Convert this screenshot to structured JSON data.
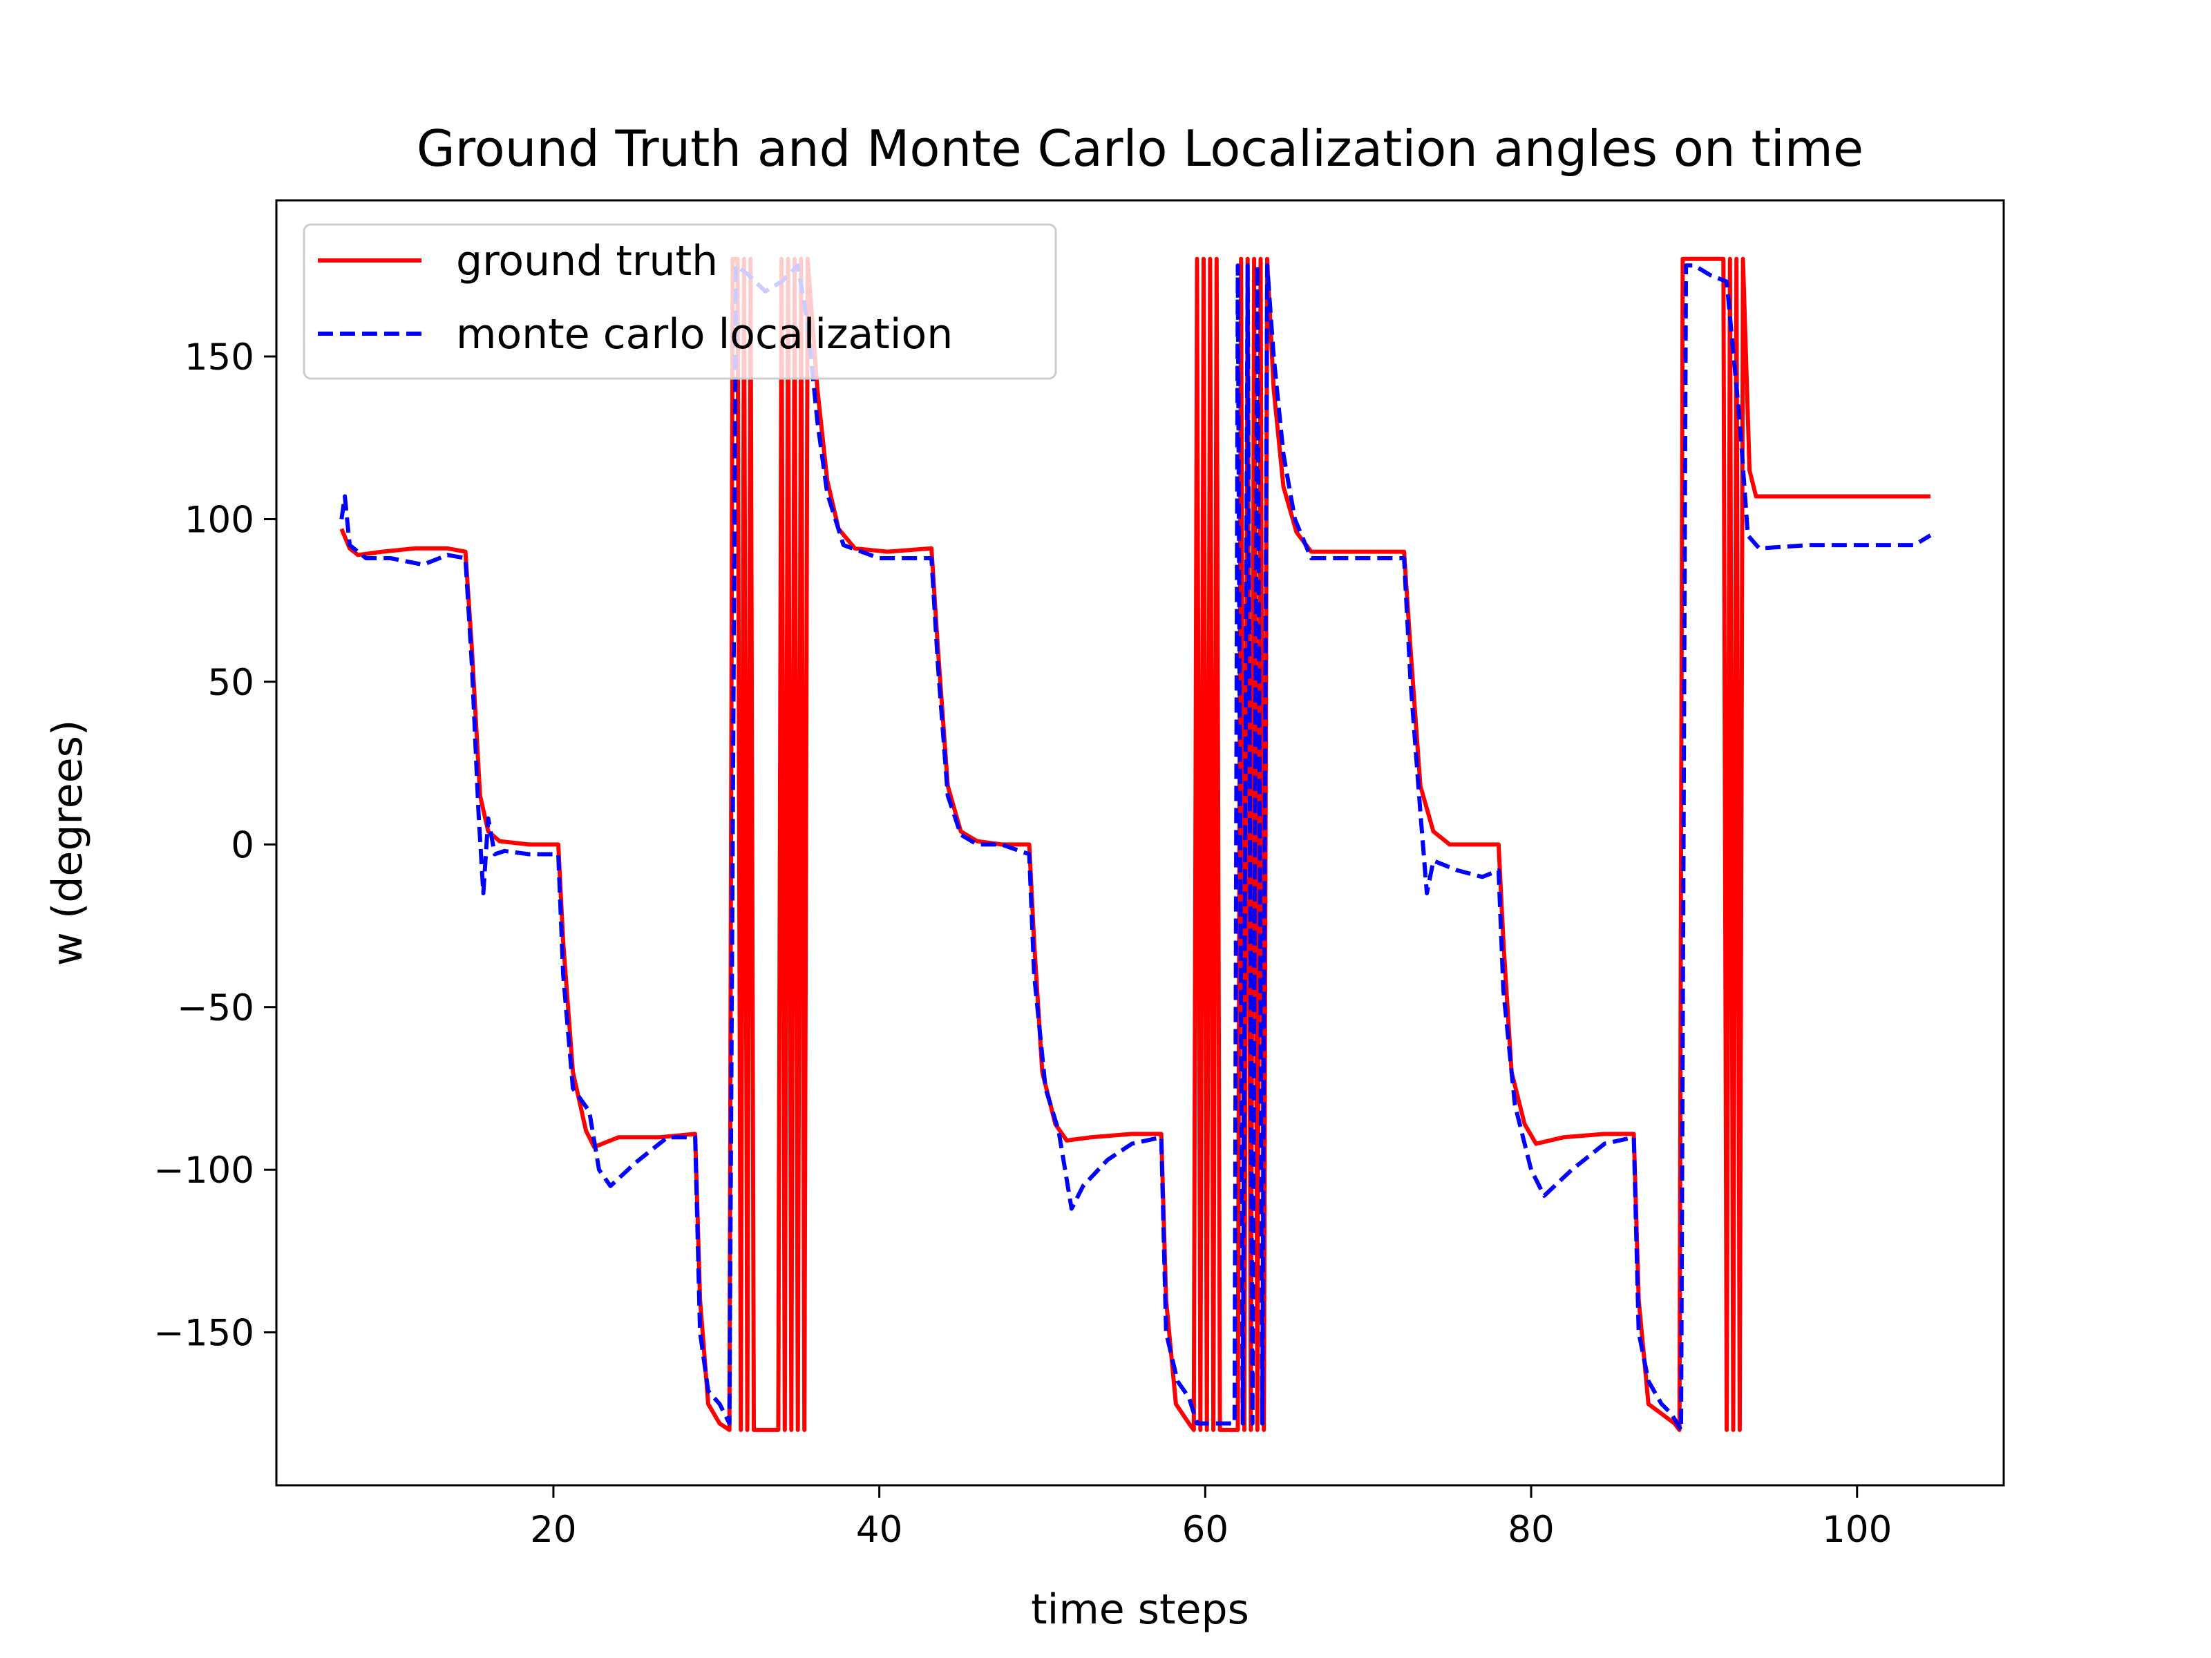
{
  "chart_data": {
    "type": "line",
    "title": "Ground Truth and Monte Carlo Localization angles on time",
    "xlabel": "time steps",
    "ylabel": "w (degrees)",
    "xlim": [
      3,
      109
    ],
    "ylim": [
      -197,
      198
    ],
    "xticks": [
      20,
      40,
      60,
      80,
      100
    ],
    "yticks": [
      -150,
      -100,
      -50,
      0,
      50,
      100,
      150
    ],
    "xtick_labels": [
      "20",
      "40",
      "60",
      "80",
      "100"
    ],
    "ytick_labels": [
      "−150",
      "−100",
      "−50",
      "0",
      "50",
      "100",
      "150"
    ],
    "grid": false,
    "legend_position": "upper-left",
    "series": [
      {
        "name": "ground truth",
        "color": "#ff0000",
        "style": "solid",
        "points": [
          [
            7.0,
            97
          ],
          [
            7.5,
            91
          ],
          [
            8.0,
            89
          ],
          [
            9.5,
            90
          ],
          [
            11.5,
            91
          ],
          [
            13.5,
            91
          ],
          [
            14.6,
            90
          ],
          [
            15.0,
            60
          ],
          [
            15.5,
            15
          ],
          [
            16.0,
            4
          ],
          [
            16.7,
            1
          ],
          [
            18.5,
            0
          ],
          [
            20.3,
            0
          ],
          [
            20.6,
            -30
          ],
          [
            21.2,
            -70
          ],
          [
            22.0,
            -88
          ],
          [
            22.5,
            -93
          ],
          [
            24.0,
            -90
          ],
          [
            26.5,
            -90
          ],
          [
            28.7,
            -89
          ],
          [
            29.0,
            -140
          ],
          [
            29.5,
            -172
          ],
          [
            30.2,
            -178
          ],
          [
            30.8,
            -180
          ],
          [
            31.0,
            180
          ],
          [
            31.3,
            180
          ],
          [
            31.5,
            -180
          ],
          [
            31.7,
            180
          ],
          [
            31.9,
            -180
          ],
          [
            32.1,
            180
          ],
          [
            32.3,
            -180
          ],
          [
            33.8,
            -180
          ],
          [
            34.0,
            180
          ],
          [
            34.2,
            -180
          ],
          [
            34.4,
            180
          ],
          [
            34.6,
            -180
          ],
          [
            34.8,
            180
          ],
          [
            35.0,
            -180
          ],
          [
            35.2,
            180
          ],
          [
            35.4,
            -180
          ],
          [
            35.6,
            180
          ],
          [
            36.2,
            140
          ],
          [
            36.8,
            112
          ],
          [
            37.5,
            97
          ],
          [
            38.5,
            91
          ],
          [
            40.5,
            90
          ],
          [
            43.2,
            91
          ],
          [
            43.6,
            60
          ],
          [
            44.2,
            18
          ],
          [
            45.0,
            4
          ],
          [
            46.0,
            1
          ],
          [
            47.5,
            0
          ],
          [
            49.2,
            0
          ],
          [
            49.5,
            -30
          ],
          [
            50.0,
            -70
          ],
          [
            50.8,
            -86
          ],
          [
            51.5,
            -91
          ],
          [
            53.0,
            -90
          ],
          [
            55.5,
            -89
          ],
          [
            57.3,
            -89
          ],
          [
            57.6,
            -140
          ],
          [
            58.2,
            -172
          ],
          [
            59.0,
            -178
          ],
          [
            59.3,
            -180
          ],
          [
            59.5,
            180
          ],
          [
            59.7,
            -180
          ],
          [
            59.9,
            180
          ],
          [
            60.1,
            -180
          ],
          [
            60.3,
            180
          ],
          [
            60.5,
            -180
          ],
          [
            60.7,
            180
          ],
          [
            60.9,
            -180
          ],
          [
            62.0,
            -180
          ],
          [
            62.2,
            180
          ],
          [
            62.4,
            -180
          ],
          [
            62.6,
            180
          ],
          [
            62.8,
            -180
          ],
          [
            63.0,
            180
          ],
          [
            63.2,
            -180
          ],
          [
            63.4,
            180
          ],
          [
            63.6,
            -180
          ],
          [
            63.8,
            180
          ],
          [
            64.2,
            140
          ],
          [
            64.8,
            110
          ],
          [
            65.6,
            96
          ],
          [
            66.5,
            90
          ],
          [
            68.5,
            90
          ],
          [
            71.5,
            90
          ],
          [
            72.2,
            90
          ],
          [
            72.6,
            60
          ],
          [
            73.2,
            18
          ],
          [
            74.0,
            4
          ],
          [
            75.0,
            0
          ],
          [
            76.5,
            0
          ],
          [
            78.0,
            0
          ],
          [
            78.3,
            -30
          ],
          [
            78.8,
            -70
          ],
          [
            79.6,
            -86
          ],
          [
            80.3,
            -92
          ],
          [
            82.0,
            -90
          ],
          [
            84.5,
            -89
          ],
          [
            86.3,
            -89
          ],
          [
            86.6,
            -140
          ],
          [
            87.2,
            -172
          ],
          [
            88.0,
            -175
          ],
          [
            88.8,
            -178
          ],
          [
            89.1,
            -180
          ],
          [
            89.3,
            180
          ],
          [
            89.6,
            180
          ],
          [
            91.8,
            180
          ],
          [
            92.0,
            -180
          ],
          [
            92.2,
            180
          ],
          [
            92.4,
            -180
          ],
          [
            92.6,
            180
          ],
          [
            92.8,
            -180
          ],
          [
            93.0,
            180
          ],
          [
            93.4,
            115
          ],
          [
            93.8,
            107
          ],
          [
            98.0,
            107
          ],
          [
            104.5,
            107
          ]
        ]
      },
      {
        "name": "monte carlo localization",
        "color": "#0000ff",
        "style": "dashed",
        "points": [
          [
            7.0,
            100
          ],
          [
            7.2,
            107
          ],
          [
            7.5,
            92
          ],
          [
            8.5,
            88
          ],
          [
            10.0,
            88
          ],
          [
            12.0,
            86
          ],
          [
            13.5,
            89
          ],
          [
            14.6,
            88
          ],
          [
            15.0,
            55
          ],
          [
            15.4,
            10
          ],
          [
            15.7,
            -15
          ],
          [
            16.0,
            8
          ],
          [
            16.4,
            -3
          ],
          [
            17.0,
            -2
          ],
          [
            18.5,
            -3
          ],
          [
            20.3,
            -3
          ],
          [
            20.6,
            -40
          ],
          [
            21.2,
            -75
          ],
          [
            22.2,
            -82
          ],
          [
            22.8,
            -100
          ],
          [
            23.5,
            -105
          ],
          [
            25.0,
            -98
          ],
          [
            27.0,
            -90
          ],
          [
            28.7,
            -90
          ],
          [
            29.0,
            -150
          ],
          [
            29.5,
            -168
          ],
          [
            30.2,
            -172
          ],
          [
            30.8,
            -178
          ],
          [
            31.2,
            178
          ],
          [
            32.0,
            175
          ],
          [
            33.0,
            170
          ],
          [
            34.0,
            173
          ],
          [
            35.0,
            178
          ],
          [
            35.6,
            160
          ],
          [
            36.2,
            130
          ],
          [
            36.8,
            108
          ],
          [
            37.8,
            92
          ],
          [
            40.0,
            88
          ],
          [
            43.2,
            88
          ],
          [
            43.6,
            55
          ],
          [
            44.2,
            15
          ],
          [
            45.0,
            3
          ],
          [
            46.0,
            0
          ],
          [
            47.5,
            0
          ],
          [
            49.2,
            -3
          ],
          [
            49.5,
            -40
          ],
          [
            50.2,
            -75
          ],
          [
            51.0,
            -88
          ],
          [
            51.8,
            -112
          ],
          [
            52.5,
            -105
          ],
          [
            54.0,
            -97
          ],
          [
            55.5,
            -92
          ],
          [
            57.3,
            -90
          ],
          [
            57.6,
            -150
          ],
          [
            58.3,
            -165
          ],
          [
            59.0,
            -170
          ],
          [
            59.5,
            -178
          ],
          [
            61.8,
            -178
          ],
          [
            62.0,
            178
          ],
          [
            62.3,
            -178
          ],
          [
            62.6,
            178
          ],
          [
            62.9,
            -178
          ],
          [
            63.2,
            178
          ],
          [
            63.5,
            -178
          ],
          [
            63.8,
            178
          ],
          [
            64.2,
            150
          ],
          [
            64.8,
            120
          ],
          [
            65.5,
            100
          ],
          [
            66.5,
            88
          ],
          [
            68.5,
            88
          ],
          [
            71.5,
            88
          ],
          [
            72.2,
            88
          ],
          [
            72.6,
            50
          ],
          [
            73.2,
            10
          ],
          [
            73.6,
            -15
          ],
          [
            74.0,
            -5
          ],
          [
            75.5,
            -8
          ],
          [
            77.0,
            -10
          ],
          [
            78.0,
            -8
          ],
          [
            78.3,
            -45
          ],
          [
            79.0,
            -80
          ],
          [
            80.0,
            -100
          ],
          [
            80.8,
            -108
          ],
          [
            82.5,
            -100
          ],
          [
            84.5,
            -92
          ],
          [
            86.3,
            -90
          ],
          [
            86.6,
            -150
          ],
          [
            87.2,
            -165
          ],
          [
            88.0,
            -172
          ],
          [
            88.6,
            -175
          ],
          [
            89.2,
            -180
          ],
          [
            89.5,
            178
          ],
          [
            90.0,
            178
          ],
          [
            91.0,
            175
          ],
          [
            92.0,
            173
          ],
          [
            92.8,
            130
          ],
          [
            93.3,
            95
          ],
          [
            94.0,
            91
          ],
          [
            97.0,
            92
          ],
          [
            100.5,
            92
          ],
          [
            103.5,
            92
          ],
          [
            104.5,
            95
          ]
        ]
      }
    ]
  }
}
